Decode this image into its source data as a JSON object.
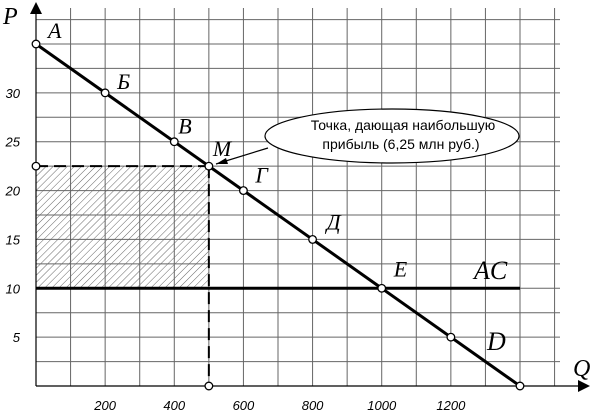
{
  "chart_data": {
    "type": "line",
    "xlabel": "Q",
    "ylabel": "P",
    "xlim": [
      0,
      1400
    ],
    "ylim": [
      0,
      35
    ],
    "x_ticks": [
      200,
      400,
      600,
      800,
      1000,
      1200
    ],
    "y_ticks": [
      5,
      10,
      15,
      20,
      25,
      30
    ],
    "grid": true,
    "demand_line": {
      "x": [
        0,
        1400
      ],
      "y": [
        35,
        0
      ]
    },
    "ac_line": {
      "label": "AC",
      "y": 10,
      "x_range": [
        0,
        1400
      ]
    },
    "points": [
      {
        "label": "A",
        "x": 0,
        "y": 35
      },
      {
        "label": "Б",
        "x": 200,
        "y": 30
      },
      {
        "label": "В",
        "x": 400,
        "y": 25
      },
      {
        "label": "M",
        "x": 500,
        "y": 22.5
      },
      {
        "label": "Г",
        "x": 600,
        "y": 20
      },
      {
        "label": "Д",
        "x": 800,
        "y": 15
      },
      {
        "label": "E",
        "x": 1000,
        "y": 10
      },
      {
        "label": "",
        "x": 1200,
        "y": 5
      },
      {
        "label": "",
        "x": 1400,
        "y": 0
      }
    ],
    "D_label": "D",
    "optimum": {
      "x": 500,
      "y": 22.5
    },
    "annotation": {
      "line1": "Точка, дающая наибольшую",
      "line2": "прибыль (6,25 млн руб.)"
    }
  }
}
